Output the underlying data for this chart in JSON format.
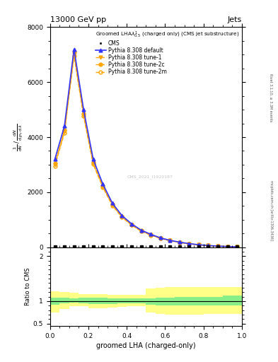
{
  "title_top": "13000 GeV pp",
  "title_right": "Jets",
  "xlabel": "groomed LHA (charged-only)",
  "ylabel_ratio": "Ratio to CMS",
  "right_label_top": "Rivet 3.1.10, ≥ 3.3M events",
  "right_label_bottom": "mcplots.cern.ch [arXiv:1306.3436]",
  "watermark": "CMS_2021_I1920187",
  "cms_x": [
    0.025,
    0.075,
    0.125,
    0.175,
    0.225,
    0.275,
    0.325,
    0.375,
    0.425,
    0.475,
    0.525,
    0.575,
    0.625,
    0.675,
    0.725,
    0.775,
    0.825,
    0.875,
    0.925,
    0.975
  ],
  "cms_y": [
    0,
    0,
    0,
    0,
    0,
    0,
    0,
    0,
    0,
    0,
    0,
    0,
    0,
    0,
    0,
    0,
    0,
    0,
    0,
    0
  ],
  "default_x": [
    0.025,
    0.075,
    0.125,
    0.175,
    0.225,
    0.275,
    0.325,
    0.375,
    0.425,
    0.475,
    0.525,
    0.575,
    0.625,
    0.675,
    0.725,
    0.775,
    0.825,
    0.875,
    0.925,
    0.975
  ],
  "default_y": [
    3200,
    4400,
    7200,
    5000,
    3200,
    2300,
    1600,
    1150,
    850,
    620,
    470,
    340,
    250,
    185,
    130,
    90,
    60,
    40,
    25,
    15
  ],
  "tune1_x": [
    0.025,
    0.075,
    0.125,
    0.175,
    0.225,
    0.275,
    0.325,
    0.375,
    0.425,
    0.475,
    0.525,
    0.575,
    0.625,
    0.675,
    0.725,
    0.775,
    0.825,
    0.875,
    0.925,
    0.975
  ],
  "tune1_y": [
    3000,
    4200,
    7000,
    4800,
    3050,
    2200,
    1530,
    1100,
    810,
    590,
    445,
    325,
    238,
    176,
    124,
    86,
    57,
    38,
    24,
    14
  ],
  "tune2c_x": [
    0.025,
    0.075,
    0.125,
    0.175,
    0.225,
    0.275,
    0.325,
    0.375,
    0.425,
    0.475,
    0.525,
    0.575,
    0.625,
    0.675,
    0.725,
    0.775,
    0.825,
    0.875,
    0.925,
    0.975
  ],
  "tune2c_y": [
    3050,
    4250,
    7100,
    4850,
    3080,
    2220,
    1550,
    1110,
    820,
    596,
    450,
    328,
    241,
    178,
    126,
    87,
    58,
    39,
    24.5,
    14.5
  ],
  "tune2m_x": [
    0.025,
    0.075,
    0.125,
    0.175,
    0.225,
    0.275,
    0.325,
    0.375,
    0.425,
    0.475,
    0.525,
    0.575,
    0.625,
    0.675,
    0.725,
    0.775,
    0.825,
    0.875,
    0.925,
    0.975
  ],
  "tune2m_y": [
    2950,
    4150,
    6950,
    4760,
    3020,
    2180,
    1515,
    1088,
    802,
    582,
    440,
    320,
    235,
    173,
    122,
    84,
    56,
    37,
    23.5,
    13.8
  ],
  "color_cms": "#000000",
  "color_default": "#3333ff",
  "color_tune1": "#ffa500",
  "color_tune2c": "#ffa500",
  "color_tune2m": "#ffa500",
  "ratio_xedges": [
    0.0,
    0.05,
    0.1,
    0.15,
    0.2,
    0.25,
    0.3,
    0.35,
    0.4,
    0.45,
    0.5,
    0.55,
    0.6,
    0.65,
    0.7,
    0.75,
    0.8,
    0.85,
    0.9,
    0.95,
    1.0
  ],
  "ratio_green_lo": [
    0.92,
    0.95,
    0.97,
    0.95,
    0.94,
    0.93,
    0.94,
    0.95,
    0.95,
    0.95,
    0.92,
    0.9,
    0.9,
    0.9,
    0.9,
    0.9,
    0.9,
    0.9,
    0.9,
    0.9
  ],
  "ratio_green_hi": [
    1.08,
    1.08,
    1.06,
    1.07,
    1.07,
    1.07,
    1.06,
    1.06,
    1.06,
    1.06,
    1.06,
    1.08,
    1.08,
    1.1,
    1.1,
    1.1,
    1.1,
    1.1,
    1.12,
    1.12
  ],
  "ratio_yellow_lo": [
    0.75,
    0.82,
    0.88,
    0.88,
    0.84,
    0.84,
    0.86,
    0.87,
    0.88,
    0.88,
    0.75,
    0.72,
    0.7,
    0.7,
    0.7,
    0.7,
    0.72,
    0.72,
    0.72,
    0.72
  ],
  "ratio_yellow_hi": [
    1.22,
    1.2,
    1.18,
    1.16,
    1.16,
    1.16,
    1.14,
    1.14,
    1.14,
    1.14,
    1.28,
    1.3,
    1.32,
    1.32,
    1.32,
    1.32,
    1.32,
    1.32,
    1.32,
    1.32
  ],
  "ylim_main": [
    0,
    8000
  ],
  "ylim_ratio": [
    0.45,
    2.2
  ],
  "xlim": [
    0.0,
    1.0
  ],
  "yticks_main": [
    0,
    2000,
    4000,
    6000,
    8000
  ],
  "ytick_labels_main": [
    "0",
    "2000",
    "4000",
    "6000",
    "8000"
  ],
  "background_color": "#ffffff"
}
